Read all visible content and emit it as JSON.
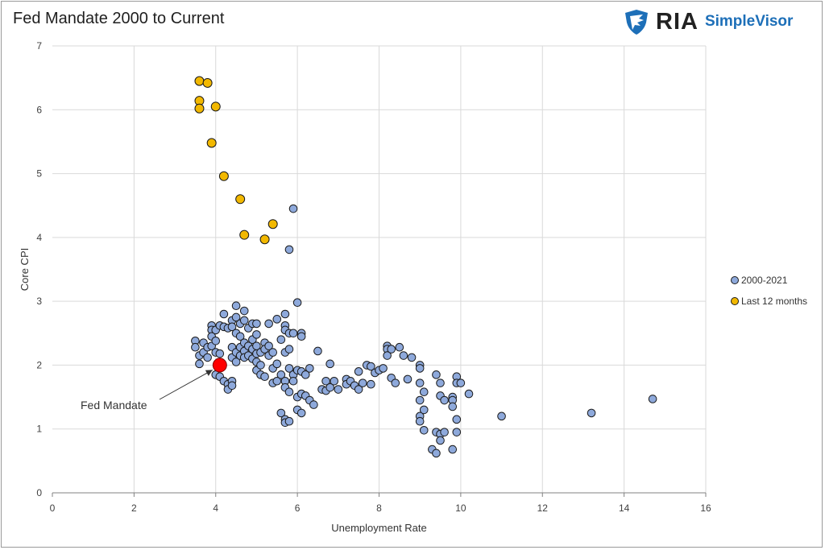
{
  "title": "Fed Mandate 2000 to Current",
  "brand": {
    "name": "RIA",
    "product": "SimpleVisor",
    "logo_icon": "eagle-icon",
    "colors": {
      "logo": "#1d6fb8",
      "text": "#222222"
    }
  },
  "chart_data": {
    "type": "scatter",
    "xlabel": "Unemployment Rate",
    "ylabel": "Core CPI",
    "xlim": [
      0,
      16
    ],
    "ylim": [
      0,
      7
    ],
    "x_ticks": [
      "0",
      "2",
      "4",
      "6",
      "8",
      "10",
      "12",
      "14",
      "16"
    ],
    "y_ticks": [
      "0",
      "1",
      "2",
      "3",
      "4",
      "5",
      "6",
      "7"
    ],
    "grid": "vertical-and-horizontal",
    "legend": "right",
    "series": [
      {
        "name": "2000-2021",
        "color": "#8ea9db",
        "points": [
          [
            3.5,
            2.38
          ],
          [
            3.5,
            2.28
          ],
          [
            3.6,
            2.15
          ],
          [
            3.6,
            2.02
          ],
          [
            3.7,
            2.35
          ],
          [
            3.7,
            2.2
          ],
          [
            3.8,
            2.28
          ],
          [
            3.8,
            2.12
          ],
          [
            3.9,
            2.62
          ],
          [
            3.9,
            2.55
          ],
          [
            3.9,
            2.45
          ],
          [
            3.9,
            2.3
          ],
          [
            4.0,
            2.55
          ],
          [
            4.0,
            2.38
          ],
          [
            4.0,
            2.2
          ],
          [
            4.0,
            1.85
          ],
          [
            4.1,
            2.62
          ],
          [
            4.1,
            2.18
          ],
          [
            4.1,
            1.82
          ],
          [
            4.2,
            2.8
          ],
          [
            4.2,
            2.6
          ],
          [
            4.2,
            1.75
          ],
          [
            4.3,
            2.58
          ],
          [
            4.3,
            1.7
          ],
          [
            4.3,
            1.62
          ],
          [
            4.4,
            2.7
          ],
          [
            4.4,
            2.6
          ],
          [
            4.4,
            2.28
          ],
          [
            4.4,
            2.12
          ],
          [
            4.4,
            1.75
          ],
          [
            4.4,
            1.68
          ],
          [
            4.5,
            2.93
          ],
          [
            4.5,
            2.75
          ],
          [
            4.5,
            2.5
          ],
          [
            4.5,
            2.2
          ],
          [
            4.5,
            2.05
          ],
          [
            4.6,
            2.65
          ],
          [
            4.6,
            2.45
          ],
          [
            4.6,
            2.28
          ],
          [
            4.6,
            2.15
          ],
          [
            4.7,
            2.85
          ],
          [
            4.7,
            2.7
          ],
          [
            4.7,
            2.35
          ],
          [
            4.7,
            2.22
          ],
          [
            4.7,
            2.12
          ],
          [
            4.8,
            2.58
          ],
          [
            4.8,
            2.3
          ],
          [
            4.8,
            2.15
          ],
          [
            4.9,
            2.65
          ],
          [
            4.9,
            2.4
          ],
          [
            4.9,
            2.25
          ],
          [
            4.9,
            2.1
          ],
          [
            5.0,
            2.65
          ],
          [
            5.0,
            2.48
          ],
          [
            5.0,
            2.3
          ],
          [
            5.0,
            2.18
          ],
          [
            5.0,
            2.05
          ],
          [
            5.0,
            1.92
          ],
          [
            5.1,
            2.2
          ],
          [
            5.1,
            2.0
          ],
          [
            5.1,
            1.85
          ],
          [
            5.2,
            2.35
          ],
          [
            5.2,
            2.25
          ],
          [
            5.2,
            1.82
          ],
          [
            5.3,
            2.65
          ],
          [
            5.3,
            2.3
          ],
          [
            5.3,
            2.15
          ],
          [
            5.4,
            2.2
          ],
          [
            5.4,
            1.95
          ],
          [
            5.4,
            1.72
          ],
          [
            5.5,
            2.72
          ],
          [
            5.5,
            2.02
          ],
          [
            5.5,
            1.75
          ],
          [
            5.6,
            2.4
          ],
          [
            5.6,
            1.85
          ],
          [
            5.6,
            1.25
          ],
          [
            5.7,
            2.8
          ],
          [
            5.7,
            2.62
          ],
          [
            5.7,
            2.55
          ],
          [
            5.7,
            2.2
          ],
          [
            5.7,
            1.75
          ],
          [
            5.7,
            1.65
          ],
          [
            5.7,
            1.15
          ],
          [
            5.7,
            1.1
          ],
          [
            5.8,
            3.81
          ],
          [
            5.8,
            2.5
          ],
          [
            5.8,
            2.25
          ],
          [
            5.8,
            1.95
          ],
          [
            5.8,
            1.58
          ],
          [
            5.8,
            1.12
          ],
          [
            5.9,
            4.45
          ],
          [
            5.9,
            2.5
          ],
          [
            5.9,
            1.85
          ],
          [
            5.9,
            1.75
          ],
          [
            6.0,
            2.98
          ],
          [
            6.0,
            1.92
          ],
          [
            6.0,
            1.5
          ],
          [
            6.0,
            1.3
          ],
          [
            6.1,
            2.5
          ],
          [
            6.1,
            2.45
          ],
          [
            6.1,
            1.9
          ],
          [
            6.1,
            1.55
          ],
          [
            6.1,
            1.25
          ],
          [
            6.2,
            1.85
          ],
          [
            6.2,
            1.52
          ],
          [
            6.3,
            1.95
          ],
          [
            6.3,
            1.45
          ],
          [
            6.4,
            1.38
          ],
          [
            6.5,
            2.22
          ],
          [
            6.6,
            1.62
          ],
          [
            6.7,
            1.75
          ],
          [
            6.7,
            1.6
          ],
          [
            6.8,
            2.02
          ],
          [
            6.8,
            1.65
          ],
          [
            6.9,
            1.75
          ],
          [
            7.0,
            1.62
          ],
          [
            7.2,
            1.78
          ],
          [
            7.2,
            1.7
          ],
          [
            7.3,
            1.75
          ],
          [
            7.4,
            1.68
          ],
          [
            7.5,
            1.9
          ],
          [
            7.5,
            1.62
          ],
          [
            7.6,
            1.72
          ],
          [
            7.7,
            2.0
          ],
          [
            7.8,
            1.98
          ],
          [
            7.8,
            1.7
          ],
          [
            7.9,
            1.88
          ],
          [
            8.0,
            1.92
          ],
          [
            8.1,
            1.95
          ],
          [
            8.2,
            2.3
          ],
          [
            8.2,
            2.25
          ],
          [
            8.2,
            2.15
          ],
          [
            8.3,
            2.25
          ],
          [
            8.3,
            1.8
          ],
          [
            8.4,
            1.72
          ],
          [
            8.5,
            2.28
          ],
          [
            8.6,
            2.15
          ],
          [
            8.7,
            1.78
          ],
          [
            8.8,
            2.12
          ],
          [
            9.0,
            2.0
          ],
          [
            9.0,
            1.95
          ],
          [
            9.0,
            1.72
          ],
          [
            9.0,
            1.45
          ],
          [
            9.0,
            1.2
          ],
          [
            9.0,
            1.12
          ],
          [
            9.1,
            1.58
          ],
          [
            9.1,
            1.3
          ],
          [
            9.1,
            0.98
          ],
          [
            9.3,
            0.68
          ],
          [
            9.4,
            1.85
          ],
          [
            9.4,
            0.95
          ],
          [
            9.4,
            0.62
          ],
          [
            9.5,
            1.72
          ],
          [
            9.5,
            1.52
          ],
          [
            9.5,
            0.92
          ],
          [
            9.5,
            0.82
          ],
          [
            9.6,
            1.45
          ],
          [
            9.6,
            0.95
          ],
          [
            9.8,
            1.5
          ],
          [
            9.8,
            1.45
          ],
          [
            9.8,
            1.35
          ],
          [
            9.8,
            0.68
          ],
          [
            9.9,
            1.82
          ],
          [
            9.9,
            1.72
          ],
          [
            9.9,
            1.15
          ],
          [
            9.9,
            0.95
          ],
          [
            10.0,
            1.72
          ],
          [
            10.2,
            1.55
          ],
          [
            11.0,
            1.2
          ],
          [
            13.2,
            1.25
          ],
          [
            14.7,
            1.47
          ]
        ]
      },
      {
        "name": "Last 12 months",
        "color": "#f2b800",
        "points": [
          [
            3.6,
            6.45
          ],
          [
            3.8,
            6.42
          ],
          [
            3.6,
            6.14
          ],
          [
            3.6,
            6.02
          ],
          [
            4.0,
            6.05
          ],
          [
            3.9,
            5.48
          ],
          [
            4.2,
            4.96
          ],
          [
            4.6,
            4.6
          ],
          [
            5.4,
            4.21
          ],
          [
            4.7,
            4.04
          ],
          [
            5.2,
            3.97
          ]
        ]
      }
    ],
    "highlight": {
      "label": "Fed Mandate",
      "x": 4.1,
      "y": 2.0,
      "color": "#ff0000"
    }
  }
}
